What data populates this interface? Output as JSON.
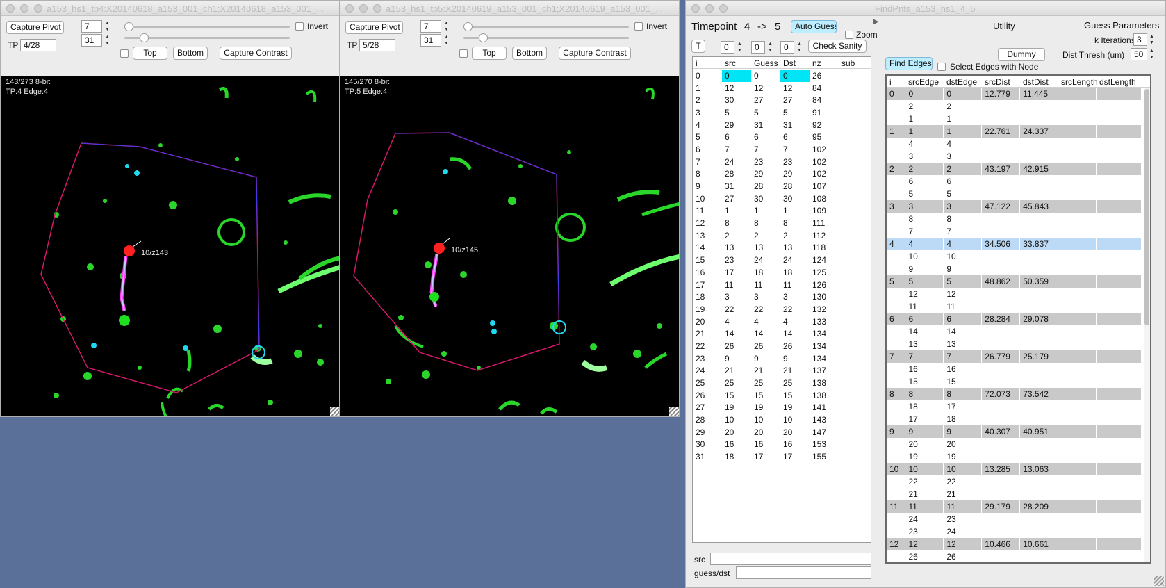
{
  "left_window": {
    "title": "a153_hs1_tp4:X20140618_a153_001_ch1;X20140618_a153_001_...",
    "capture_pivot": "Capture Pivot",
    "tp_label": "TP",
    "tp_value": "4/28",
    "spin1": "7",
    "spin2": "31",
    "invert": "Invert",
    "top": "Top",
    "bottom": "Bottom",
    "capture_contrast": "Capture Contrast",
    "slider1_pct": 3,
    "slider2_pct": 14,
    "info1": "143/273 8-bit",
    "info2": "TP:4 Edge:4",
    "annotation": "10/z143"
  },
  "right_window": {
    "title": "a153_hs1_tp5:X20140619_a153_001_ch1;X20140619_a153_001_...",
    "capture_pivot": "Capture Pivot",
    "tp_label": "TP",
    "tp_value": "5/28",
    "spin1": "7",
    "spin2": "31",
    "invert": "Invert",
    "top": "Top",
    "bottom": "Bottom",
    "capture_contrast": "Capture Contrast",
    "slider1_pct": 3,
    "slider2_pct": 14,
    "info1": "145/270 8-bit",
    "info2": "TP:5 Edge:4",
    "annotation": "10/z145"
  },
  "findpnts": {
    "title": "FindPnts_a153_hs1_4_5",
    "timepoint_label": "Timepoint",
    "tp_from": "4",
    "arrow": "->",
    "tp_to": "5",
    "auto_guess": "Auto Guess",
    "zoom": "Zoom",
    "t_button": "T",
    "spin_a": "0",
    "spin_b": "0",
    "spin_c": "0",
    "check_sanity": "Check Sanity",
    "utility": "Utility",
    "dummy": "Dummy",
    "guess_params": "Guess Parameters",
    "k_iter_label": "k Iterations",
    "k_iter_value": "3",
    "dist_thresh_label": "Dist Thresh (um)",
    "dist_thresh_value": "50",
    "find_edges": "Find Edges",
    "select_edges": "Select Edges with Node",
    "src_label": "src",
    "guess_dst_label": "guess/dst",
    "point_headers": [
      "i",
      "src",
      "Guess",
      "Dst",
      "nz",
      "sub"
    ],
    "points": [
      [
        "0",
        "0",
        "0",
        "0",
        "26",
        ""
      ],
      [
        "1",
        "12",
        "12",
        "12",
        "84",
        ""
      ],
      [
        "2",
        "30",
        "27",
        "27",
        "84",
        ""
      ],
      [
        "3",
        "5",
        "5",
        "5",
        "91",
        ""
      ],
      [
        "4",
        "29",
        "31",
        "31",
        "92",
        ""
      ],
      [
        "5",
        "6",
        "6",
        "6",
        "95",
        ""
      ],
      [
        "6",
        "7",
        "7",
        "7",
        "102",
        ""
      ],
      [
        "7",
        "24",
        "23",
        "23",
        "102",
        ""
      ],
      [
        "8",
        "28",
        "29",
        "29",
        "102",
        ""
      ],
      [
        "9",
        "31",
        "28",
        "28",
        "107",
        ""
      ],
      [
        "10",
        "27",
        "30",
        "30",
        "108",
        ""
      ],
      [
        "11",
        "1",
        "1",
        "1",
        "109",
        ""
      ],
      [
        "12",
        "8",
        "8",
        "8",
        "111",
        ""
      ],
      [
        "13",
        "2",
        "2",
        "2",
        "112",
        ""
      ],
      [
        "14",
        "13",
        "13",
        "13",
        "118",
        ""
      ],
      [
        "15",
        "23",
        "24",
        "24",
        "124",
        ""
      ],
      [
        "16",
        "17",
        "18",
        "18",
        "125",
        ""
      ],
      [
        "17",
        "11",
        "11",
        "11",
        "126",
        ""
      ],
      [
        "18",
        "3",
        "3",
        "3",
        "130",
        ""
      ],
      [
        "19",
        "22",
        "22",
        "22",
        "132",
        ""
      ],
      [
        "20",
        "4",
        "4",
        "4",
        "133",
        ""
      ],
      [
        "21",
        "14",
        "14",
        "14",
        "134",
        ""
      ],
      [
        "22",
        "26",
        "26",
        "26",
        "134",
        ""
      ],
      [
        "23",
        "9",
        "9",
        "9",
        "134",
        ""
      ],
      [
        "24",
        "21",
        "21",
        "21",
        "137",
        ""
      ],
      [
        "25",
        "25",
        "25",
        "25",
        "138",
        ""
      ],
      [
        "26",
        "15",
        "15",
        "15",
        "138",
        ""
      ],
      [
        "27",
        "19",
        "19",
        "19",
        "141",
        ""
      ],
      [
        "28",
        "10",
        "10",
        "10",
        "143",
        ""
      ],
      [
        "29",
        "20",
        "20",
        "20",
        "147",
        ""
      ],
      [
        "30",
        "16",
        "16",
        "16",
        "153",
        ""
      ],
      [
        "31",
        "18",
        "17",
        "17",
        "155",
        ""
      ]
    ],
    "edge_headers": [
      "i",
      "srcEdge",
      "dstEdge",
      "srcDist",
      "dstDist",
      "srcLength",
      "dstLength"
    ],
    "edges": [
      [
        "0",
        "0",
        "0",
        "12.779",
        "11.445",
        "",
        ""
      ],
      [
        "",
        "2",
        "2",
        "",
        "",
        "",
        ""
      ],
      [
        "",
        "1",
        "1",
        "",
        "",
        "",
        ""
      ],
      [
        "1",
        "1",
        "1",
        "22.761",
        "24.337",
        "",
        ""
      ],
      [
        "",
        "4",
        "4",
        "",
        "",
        "",
        ""
      ],
      [
        "",
        "3",
        "3",
        "",
        "",
        "",
        ""
      ],
      [
        "2",
        "2",
        "2",
        "43.197",
        "42.915",
        "",
        ""
      ],
      [
        "",
        "6",
        "6",
        "",
        "",
        "",
        ""
      ],
      [
        "",
        "5",
        "5",
        "",
        "",
        "",
        ""
      ],
      [
        "3",
        "3",
        "3",
        "47.122",
        "45.843",
        "",
        ""
      ],
      [
        "",
        "8",
        "8",
        "",
        "",
        "",
        ""
      ],
      [
        "",
        "7",
        "7",
        "",
        "",
        "",
        ""
      ],
      [
        "4",
        "4",
        "4",
        "34.506",
        "33.837",
        "",
        ""
      ],
      [
        "",
        "10",
        "10",
        "",
        "",
        "",
        ""
      ],
      [
        "",
        "9",
        "9",
        "",
        "",
        "",
        ""
      ],
      [
        "5",
        "5",
        "5",
        "48.862",
        "50.359",
        "",
        ""
      ],
      [
        "",
        "12",
        "12",
        "",
        "",
        "",
        ""
      ],
      [
        "",
        "11",
        "11",
        "",
        "",
        "",
        ""
      ],
      [
        "6",
        "6",
        "6",
        "28.284",
        "29.078",
        "",
        ""
      ],
      [
        "",
        "14",
        "14",
        "",
        "",
        "",
        ""
      ],
      [
        "",
        "13",
        "13",
        "",
        "",
        "",
        ""
      ],
      [
        "7",
        "7",
        "7",
        "26.779",
        "25.179",
        "",
        ""
      ],
      [
        "",
        "16",
        "16",
        "",
        "",
        "",
        ""
      ],
      [
        "",
        "15",
        "15",
        "",
        "",
        "",
        ""
      ],
      [
        "8",
        "8",
        "8",
        "72.073",
        "73.542",
        "",
        ""
      ],
      [
        "",
        "18",
        "17",
        "",
        "",
        "",
        ""
      ],
      [
        "",
        "17",
        "18",
        "",
        "",
        "",
        ""
      ],
      [
        "9",
        "9",
        "9",
        "40.307",
        "40.951",
        "",
        ""
      ],
      [
        "",
        "20",
        "20",
        "",
        "",
        "",
        ""
      ],
      [
        "",
        "19",
        "19",
        "",
        "",
        "",
        ""
      ],
      [
        "10",
        "10",
        "10",
        "13.285",
        "13.063",
        "",
        ""
      ],
      [
        "",
        "22",
        "22",
        "",
        "",
        "",
        ""
      ],
      [
        "",
        "21",
        "21",
        "",
        "",
        "",
        ""
      ],
      [
        "11",
        "11",
        "11",
        "29.179",
        "28.209",
        "",
        ""
      ],
      [
        "",
        "24",
        "23",
        "",
        "",
        "",
        ""
      ],
      [
        "",
        "23",
        "24",
        "",
        "",
        "",
        ""
      ],
      [
        "12",
        "12",
        "12",
        "10.466",
        "10.661",
        "",
        ""
      ],
      [
        "",
        "26",
        "26",
        "",
        "",
        "",
        ""
      ]
    ]
  }
}
